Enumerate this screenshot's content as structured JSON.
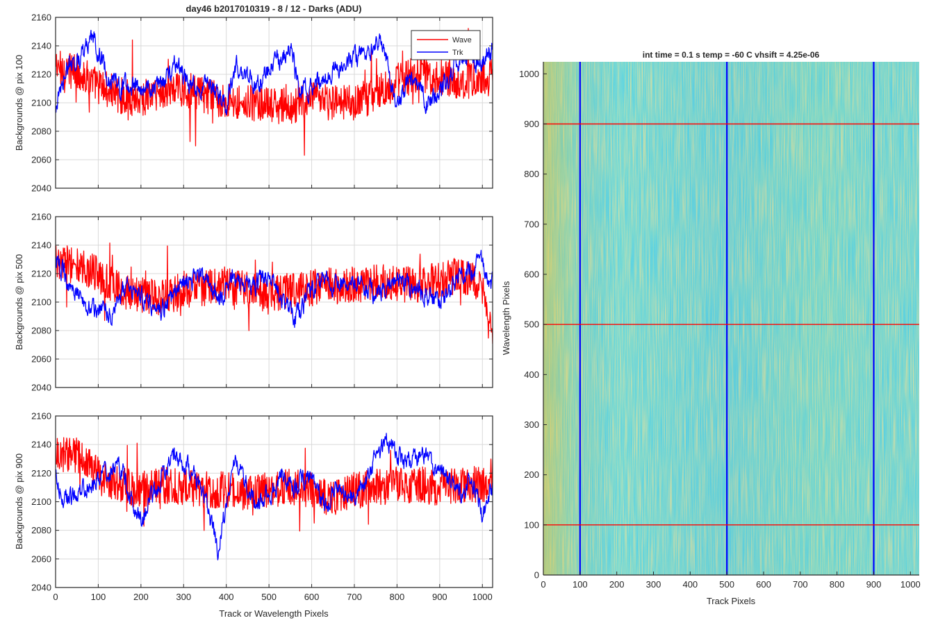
{
  "figure": {
    "title": "day46 b2017010319 - 8 / 12 - Darks (ADU)",
    "image_title": "int time = 0.1 s   temp = -60 C   vhsift = 4.25e-06",
    "line_xlabel": "Track or Wavelength Pixels"
  },
  "colors": {
    "wave": "#ff0000",
    "trk": "#0000ff",
    "grid": "#d9d9d9",
    "axis": "#262626"
  },
  "chart_data": [
    {
      "type": "line",
      "xlabel": "",
      "ylabel": "Backgrounds @ pix 100",
      "xlim": [
        0,
        1024
      ],
      "ylim": [
        2040,
        2160
      ],
      "xticks": [
        0,
        100,
        200,
        300,
        400,
        500,
        600,
        700,
        800,
        900,
        1000
      ],
      "xtick_labels": [
        "",
        "",
        "",
        "",
        "",
        "",
        "",
        "",
        "",
        "",
        ""
      ],
      "yticks": [
        2040,
        2060,
        2080,
        2100,
        2120,
        2140,
        2160
      ],
      "grid": true,
      "legend": "top-right",
      "series": [
        {
          "name": "Wave",
          "color": "#ff0000",
          "mean": 2115,
          "amp": 13,
          "x": [
            0,
            50,
            100,
            150,
            200,
            250,
            300,
            350,
            400,
            450,
            500,
            550,
            600,
            650,
            700,
            750,
            800,
            850,
            900,
            950,
            1024
          ],
          "y": [
            2125,
            2122,
            2112,
            2105,
            2103,
            2108,
            2110,
            2105,
            2102,
            2100,
            2098,
            2097,
            2102,
            2100,
            2100,
            2106,
            2115,
            2120,
            2118,
            2115,
            2118
          ]
        },
        {
          "name": "Trk",
          "color": "#0000ff",
          "mean": 2115,
          "amp": 3.5,
          "x": [
            0,
            25,
            50,
            90,
            120,
            150,
            200,
            250,
            280,
            300,
            330,
            360,
            400,
            420,
            450,
            470,
            500,
            530,
            550,
            570,
            600,
            620,
            650,
            700,
            760,
            780,
            800,
            830,
            870,
            900,
            940,
            1000,
            1024
          ],
          "y": [
            2095,
            2125,
            2130,
            2145,
            2120,
            2112,
            2110,
            2112,
            2130,
            2118,
            2110,
            2110,
            2100,
            2125,
            2120,
            2110,
            2125,
            2130,
            2140,
            2110,
            2112,
            2115,
            2125,
            2130,
            2145,
            2125,
            2095,
            2118,
            2100,
            2108,
            2130,
            2130,
            2138
          ]
        }
      ]
    },
    {
      "type": "line",
      "xlabel": "",
      "ylabel": "Backgrounds @ pix 500",
      "xlim": [
        0,
        1024
      ],
      "ylim": [
        2040,
        2160
      ],
      "xticks": [
        0,
        100,
        200,
        300,
        400,
        500,
        600,
        700,
        800,
        900,
        1000
      ],
      "xtick_labels": [
        "",
        "",
        "",
        "",
        "",
        "",
        "",
        "",
        "",
        "",
        ""
      ],
      "yticks": [
        2040,
        2060,
        2080,
        2100,
        2120,
        2140,
        2160
      ],
      "grid": true,
      "series": [
        {
          "name": "Wave",
          "color": "#ff0000",
          "mean": 2110,
          "amp": 13,
          "x": [
            0,
            50,
            100,
            150,
            200,
            250,
            300,
            350,
            400,
            450,
            500,
            550,
            600,
            650,
            700,
            750,
            800,
            850,
            900,
            950,
            1000,
            1024
          ],
          "y": [
            2130,
            2125,
            2120,
            2108,
            2105,
            2103,
            2108,
            2110,
            2112,
            2108,
            2105,
            2108,
            2110,
            2112,
            2112,
            2115,
            2112,
            2112,
            2115,
            2120,
            2110,
            2070
          ]
        },
        {
          "name": "Trk",
          "color": "#0000ff",
          "mean": 2110,
          "amp": 3.5,
          "x": [
            0,
            30,
            60,
            100,
            130,
            160,
            200,
            250,
            300,
            350,
            380,
            420,
            460,
            500,
            530,
            560,
            600,
            630,
            660,
            700,
            750,
            800,
            850,
            900,
            950,
            1000,
            1024
          ],
          "y": [
            2130,
            2115,
            2100,
            2095,
            2092,
            2110,
            2105,
            2095,
            2115,
            2120,
            2100,
            2118,
            2112,
            2120,
            2100,
            2088,
            2110,
            2118,
            2110,
            2115,
            2105,
            2115,
            2110,
            2100,
            2120,
            2128,
            2112
          ]
        }
      ]
    },
    {
      "type": "line",
      "xlabel": "Track or Wavelength Pixels",
      "ylabel": "Backgrounds @ pix 900",
      "xlim": [
        0,
        1024
      ],
      "ylim": [
        2040,
        2160
      ],
      "xticks": [
        0,
        100,
        200,
        300,
        400,
        500,
        600,
        700,
        800,
        900,
        1000
      ],
      "xtick_labels": [
        "0",
        "100",
        "200",
        "300",
        "400",
        "500",
        "600",
        "700",
        "800",
        "900",
        "1000"
      ],
      "yticks": [
        2040,
        2060,
        2080,
        2100,
        2120,
        2140,
        2160
      ],
      "grid": true,
      "series": [
        {
          "name": "Wave",
          "color": "#ff0000",
          "mean": 2112,
          "amp": 13,
          "x": [
            0,
            50,
            100,
            150,
            200,
            250,
            300,
            350,
            400,
            450,
            500,
            550,
            600,
            650,
            700,
            750,
            800,
            850,
            900,
            950,
            1000,
            1024
          ],
          "y": [
            2135,
            2132,
            2118,
            2112,
            2108,
            2112,
            2110,
            2108,
            2108,
            2105,
            2108,
            2110,
            2108,
            2102,
            2108,
            2110,
            2112,
            2112,
            2110,
            2112,
            2112,
            2118
          ]
        },
        {
          "name": "Trk",
          "color": "#0000ff",
          "mean": 2110,
          "amp": 3.5,
          "x": [
            0,
            20,
            60,
            100,
            150,
            200,
            250,
            280,
            320,
            350,
            380,
            420,
            470,
            500,
            530,
            560,
            600,
            630,
            660,
            700,
            750,
            780,
            820,
            860,
            900,
            950,
            980,
            1000,
            1024
          ],
          "y": [
            2118,
            2100,
            2108,
            2118,
            2125,
            2085,
            2118,
            2132,
            2120,
            2100,
            2068,
            2128,
            2100,
            2105,
            2118,
            2110,
            2120,
            2095,
            2110,
            2100,
            2130,
            2142,
            2125,
            2135,
            2120,
            2108,
            2112,
            2090,
            2112
          ]
        }
      ]
    },
    {
      "type": "heatmap",
      "title": "int time = 0.1 s   temp = -60 C   vhsift = 4.25e-06",
      "xlabel": "Track Pixels",
      "ylabel": "Wavelength Pixels",
      "xlim": [
        0,
        1024
      ],
      "ylim": [
        0,
        1024
      ],
      "xticks": [
        0,
        100,
        200,
        300,
        400,
        500,
        600,
        700,
        800,
        900,
        1000
      ],
      "yticks": [
        0,
        100,
        200,
        300,
        400,
        500,
        600,
        700,
        800,
        900,
        1000
      ],
      "colormap": [
        "#2d8fd0",
        "#1aa8c6",
        "#36b69e",
        "#8fbe6a",
        "#c9bc46"
      ],
      "vertical_lines": {
        "x": [
          100,
          500,
          900
        ],
        "color": "#0000ff"
      },
      "horizontal_lines": {
        "y": [
          100,
          500,
          900
        ],
        "color": "#ff0000"
      }
    }
  ]
}
